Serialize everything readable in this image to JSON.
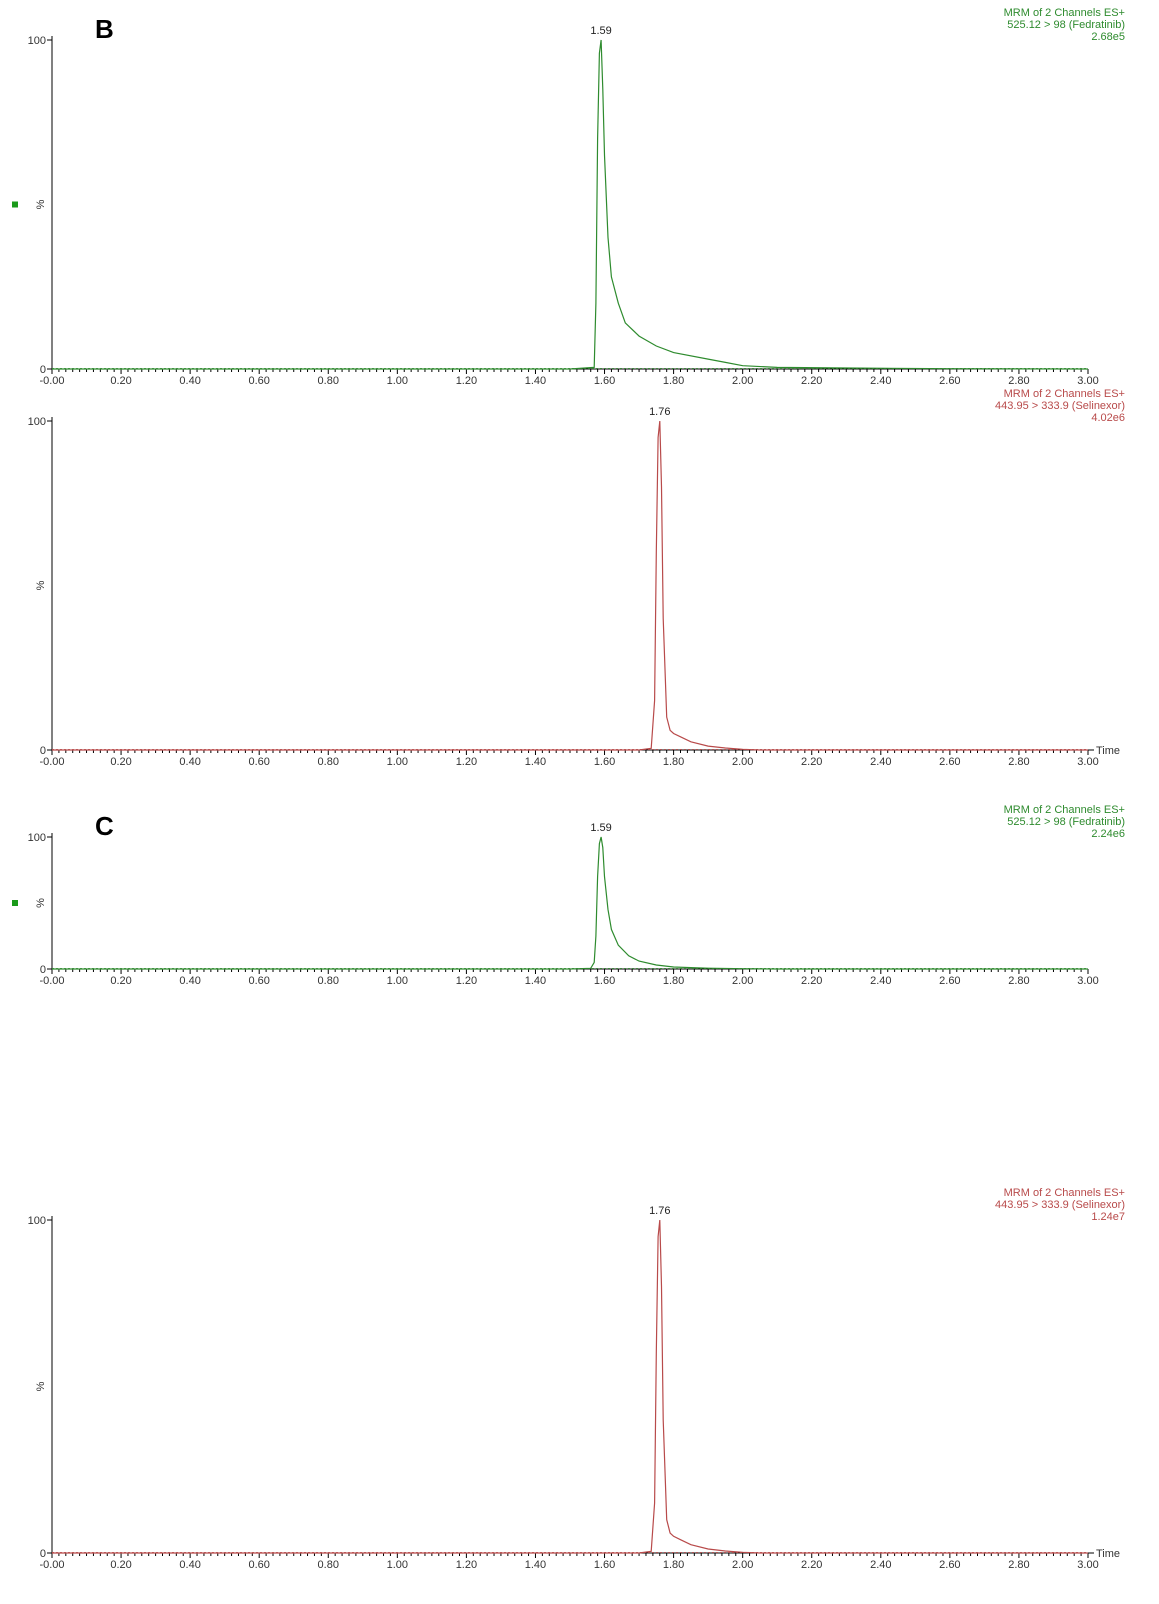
{
  "colors": {
    "fedratinib": "#2e8b2e",
    "selinexor": "#b84a4a",
    "axis": "#000000",
    "marker": "#1a9a1a"
  },
  "chart_data": [
    {
      "type": "line",
      "panel_letter": "B",
      "channel": [
        "MRM of 2 Channels ES+",
        "525.12 > 98 (Fedratinib)",
        "2.68e5"
      ],
      "series": [
        {
          "name": "525.12 > 98 (Fedratinib)",
          "color": "#2e8b2e",
          "x": [
            0,
            1.5,
            1.57,
            1.575,
            1.58,
            1.585,
            1.59,
            1.595,
            1.6,
            1.61,
            1.62,
            1.64,
            1.66,
            1.7,
            1.75,
            1.8,
            1.9,
            1.95,
            2.0,
            2.1,
            2.3,
            2.6,
            3.0
          ],
          "y": [
            0,
            0,
            0.5,
            20,
            70,
            96,
            100,
            85,
            65,
            40,
            28,
            20,
            14,
            10,
            7,
            5,
            3,
            2,
            1,
            0.5,
            0.3,
            0.1,
            0
          ]
        }
      ],
      "peak_label": "1.59",
      "peak_x": 1.59,
      "xlim": [
        0,
        3.0
      ],
      "ylim": [
        0,
        100
      ],
      "x_ticks": [
        "-0.00",
        "0.20",
        "0.40",
        "0.60",
        "0.80",
        "1.00",
        "1.20",
        "1.40",
        "1.60",
        "1.80",
        "2.00",
        "2.20",
        "2.40",
        "2.60",
        "2.80",
        "3.00"
      ],
      "y_ticks": [
        "0",
        "100"
      ],
      "ylabel": "%",
      "xlabel": "",
      "marker": true
    },
    {
      "type": "line",
      "panel_letter": "",
      "channel": [
        "MRM of 2 Channels ES+",
        "443.95 > 333.9 (Selinexor)",
        "4.02e6"
      ],
      "series": [
        {
          "name": "443.95 > 333.9 (Selinexor)",
          "color": "#b84a4a",
          "x": [
            0,
            1.7,
            1.735,
            1.745,
            1.75,
            1.755,
            1.76,
            1.765,
            1.77,
            1.78,
            1.79,
            1.8,
            1.82,
            1.85,
            1.9,
            1.95,
            2.0,
            2.05,
            3.0
          ],
          "y": [
            0,
            0,
            0.5,
            15,
            60,
            95,
            100,
            80,
            40,
            10,
            6,
            5,
            4,
            2.5,
            1.2,
            0.6,
            0.2,
            0,
            0
          ]
        }
      ],
      "peak_label": "1.76",
      "peak_x": 1.76,
      "xlim": [
        0,
        3.0
      ],
      "ylim": [
        0,
        100
      ],
      "x_ticks": [
        "-0.00",
        "0.20",
        "0.40",
        "0.60",
        "0.80",
        "1.00",
        "1.20",
        "1.40",
        "1.60",
        "1.80",
        "2.00",
        "2.20",
        "2.40",
        "2.60",
        "2.80",
        "3.00"
      ],
      "y_ticks": [
        "0",
        "100"
      ],
      "ylabel": "%",
      "xlabel": "Time",
      "marker": false
    },
    {
      "type": "line",
      "panel_letter": "C",
      "channel": [
        "MRM of 2 Channels ES+",
        "525.12 > 98 (Fedratinib)",
        "2.24e6"
      ],
      "series": [
        {
          "name": "525.12 > 98 (Fedratinib)",
          "color": "#2e8b2e",
          "x": [
            0,
            1.5,
            1.56,
            1.57,
            1.575,
            1.58,
            1.585,
            1.59,
            1.595,
            1.6,
            1.61,
            1.62,
            1.64,
            1.67,
            1.7,
            1.75,
            1.8,
            1.9,
            2.0,
            2.1,
            3.0
          ],
          "y": [
            0,
            0,
            0.5,
            5,
            25,
            70,
            95,
            100,
            92,
            70,
            45,
            30,
            18,
            10,
            6,
            3,
            1.5,
            0.6,
            0.2,
            0,
            0
          ]
        }
      ],
      "peak_label": "1.59",
      "peak_x": 1.59,
      "xlim": [
        0,
        3.0
      ],
      "ylim": [
        0,
        100
      ],
      "x_ticks": [
        "-0.00",
        "0.20",
        "0.40",
        "0.60",
        "0.80",
        "1.00",
        "1.20",
        "1.40",
        "1.60",
        "1.80",
        "2.00",
        "2.20",
        "2.40",
        "2.60",
        "2.80",
        "3.00"
      ],
      "y_ticks": [
        "0",
        "100"
      ],
      "ylabel": "%",
      "xlabel": "",
      "marker": true
    },
    {
      "type": "line",
      "panel_letter": "",
      "channel": [
        "MRM of 2 Channels ES+",
        "443.95 > 333.9 (Selinexor)",
        "1.24e7"
      ],
      "series": [
        {
          "name": "443.95 > 333.9 (Selinexor)",
          "color": "#b84a4a",
          "x": [
            0,
            1.7,
            1.735,
            1.745,
            1.75,
            1.755,
            1.76,
            1.765,
            1.77,
            1.78,
            1.79,
            1.8,
            1.82,
            1.85,
            1.9,
            1.95,
            2.0,
            2.05,
            3.0
          ],
          "y": [
            0,
            0,
            0.5,
            15,
            60,
            95,
            100,
            80,
            40,
            10,
            6,
            5,
            4,
            2.5,
            1.2,
            0.6,
            0.2,
            0,
            0
          ]
        }
      ],
      "peak_label": "1.76",
      "peak_x": 1.76,
      "xlim": [
        0,
        3.0
      ],
      "ylim": [
        0,
        100
      ],
      "x_ticks": [
        "-0.00",
        "0.20",
        "0.40",
        "0.60",
        "0.80",
        "1.00",
        "1.20",
        "1.40",
        "1.60",
        "1.80",
        "2.00",
        "2.20",
        "2.40",
        "2.60",
        "2.80",
        "3.00"
      ],
      "y_ticks": [
        "0",
        "100"
      ],
      "ylabel": "%",
      "xlabel": "Time",
      "marker": false
    }
  ]
}
